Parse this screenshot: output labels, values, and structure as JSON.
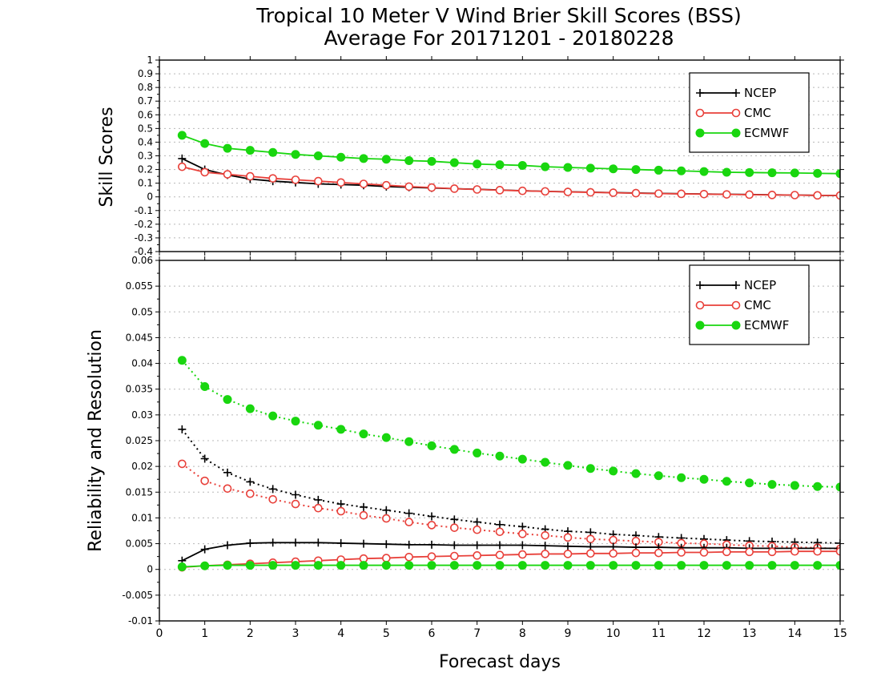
{
  "title_line1": "Tropical 10 Meter V Wind Brier Skill Scores (BSS)",
  "title_line2": "Average For 20171201 - 20180228",
  "xlabel": "Forecast days",
  "colors": {
    "NCEP": "#000000",
    "CMC": "#e8403a",
    "ECMWF": "#19d60f"
  },
  "chart_data": [
    {
      "type": "line",
      "ylabel": "Skill Scores",
      "xlim": [
        0,
        15
      ],
      "ylim": [
        -0.4,
        1
      ],
      "yticks": [
        "-0.4",
        "-0.3",
        "-0.2",
        "-0.1",
        "0",
        "0.1",
        "0.2",
        "0.3",
        "0.4",
        "0.5",
        "0.6",
        "0.7",
        "0.8",
        "0.9",
        "1"
      ],
      "grid": true,
      "legend_position": "top-right",
      "x": [
        0.5,
        1,
        1.5,
        2,
        2.5,
        3,
        3.5,
        4,
        4.5,
        5,
        5.5,
        6,
        6.5,
        7,
        7.5,
        8,
        8.5,
        9,
        9.5,
        10,
        10.5,
        11,
        11.5,
        12,
        12.5,
        13,
        13.5,
        14,
        14.5,
        15
      ],
      "series": [
        {
          "name": "NCEP",
          "marker": "plus",
          "style": "solid",
          "values": [
            0.28,
            0.2,
            0.16,
            0.13,
            0.115,
            0.105,
            0.095,
            0.09,
            0.085,
            0.075,
            0.07,
            0.065,
            0.06,
            0.055,
            0.05,
            0.045,
            0.04,
            0.037,
            0.034,
            0.031,
            0.028,
            0.025,
            0.023,
            0.021,
            0.019,
            0.017,
            0.015,
            0.013,
            0.011,
            0.01
          ]
        },
        {
          "name": "CMC",
          "marker": "open-circle",
          "style": "solid",
          "values": [
            0.22,
            0.18,
            0.165,
            0.15,
            0.135,
            0.125,
            0.115,
            0.105,
            0.095,
            0.085,
            0.075,
            0.068,
            0.06,
            0.054,
            0.049,
            0.044,
            0.04,
            0.036,
            0.033,
            0.03,
            0.027,
            0.024,
            0.022,
            0.02,
            0.018,
            0.016,
            0.014,
            0.013,
            0.011,
            0.01
          ]
        },
        {
          "name": "ECMWF",
          "marker": "filled-circle",
          "style": "solid",
          "values": [
            0.45,
            0.39,
            0.355,
            0.34,
            0.325,
            0.31,
            0.3,
            0.29,
            0.28,
            0.275,
            0.265,
            0.26,
            0.25,
            0.24,
            0.235,
            0.23,
            0.22,
            0.215,
            0.21,
            0.205,
            0.2,
            0.195,
            0.19,
            0.185,
            0.18,
            0.178,
            0.176,
            0.175,
            0.172,
            0.17
          ]
        }
      ]
    },
    {
      "type": "line",
      "ylabel": "Reliability and Resolution",
      "xlim": [
        0,
        15
      ],
      "ylim": [
        -0.01,
        0.06
      ],
      "yticks": [
        "-0.01",
        "-0.005",
        "0",
        "0.005",
        "0.01",
        "0.015",
        "0.02",
        "0.025",
        "0.03",
        "0.035",
        "0.04",
        "0.045",
        "0.05",
        "0.055",
        "0.06"
      ],
      "grid": true,
      "legend_position": "top-right",
      "x": [
        0.5,
        1,
        1.5,
        2,
        2.5,
        3,
        3.5,
        4,
        4.5,
        5,
        5.5,
        6,
        6.5,
        7,
        7.5,
        8,
        8.5,
        9,
        9.5,
        10,
        10.5,
        11,
        11.5,
        12,
        12.5,
        13,
        13.5,
        14,
        14.5,
        15
      ],
      "series": [
        {
          "name": "NCEP",
          "component": "resolution",
          "marker": "plus",
          "style": "dotted",
          "values": [
            0.0272,
            0.0215,
            0.0188,
            0.017,
            0.0156,
            0.0145,
            0.0135,
            0.0127,
            0.0121,
            0.0115,
            0.0109,
            0.0103,
            0.0097,
            0.0092,
            0.0087,
            0.0083,
            0.0078,
            0.0074,
            0.0072,
            0.0068,
            0.0066,
            0.0063,
            0.0061,
            0.0059,
            0.0057,
            0.0055,
            0.0054,
            0.0053,
            0.0052,
            0.0051
          ]
        },
        {
          "name": "CMC",
          "component": "resolution",
          "marker": "open-circle",
          "style": "dotted",
          "values": [
            0.0205,
            0.0172,
            0.0157,
            0.0147,
            0.0136,
            0.0127,
            0.0119,
            0.0113,
            0.0105,
            0.0099,
            0.0092,
            0.0086,
            0.0081,
            0.0077,
            0.0073,
            0.0069,
            0.0066,
            0.0062,
            0.0059,
            0.0057,
            0.0055,
            0.0053,
            0.0051,
            0.005,
            0.0048,
            0.0046,
            0.0045,
            0.0043,
            0.0042,
            0.004
          ]
        },
        {
          "name": "ECMWF",
          "component": "resolution",
          "marker": "filled-circle",
          "style": "dotted",
          "values": [
            0.0406,
            0.0355,
            0.033,
            0.0312,
            0.0298,
            0.0288,
            0.028,
            0.0272,
            0.0263,
            0.0256,
            0.0248,
            0.024,
            0.0233,
            0.0226,
            0.022,
            0.0214,
            0.0208,
            0.0202,
            0.0196,
            0.0191,
            0.0186,
            0.0182,
            0.0178,
            0.0175,
            0.0171,
            0.0168,
            0.0165,
            0.0163,
            0.0161,
            0.016
          ]
        },
        {
          "name": "NCEP",
          "component": "reliability",
          "marker": "plus",
          "style": "solid",
          "values": [
            0.0017,
            0.0039,
            0.0047,
            0.0051,
            0.0052,
            0.0052,
            0.0052,
            0.0051,
            0.005,
            0.0049,
            0.0048,
            0.0048,
            0.0047,
            0.0047,
            0.0047,
            0.0047,
            0.0046,
            0.0045,
            0.0044,
            0.0044,
            0.0043,
            0.0043,
            0.0042,
            0.0042,
            0.0042,
            0.0041,
            0.0041,
            0.0041,
            0.0041,
            0.0041
          ]
        },
        {
          "name": "CMC",
          "component": "reliability",
          "marker": "open-circle",
          "style": "solid",
          "values": [
            0.0004,
            0.0007,
            0.0009,
            0.0011,
            0.0013,
            0.0015,
            0.0017,
            0.0019,
            0.0021,
            0.0022,
            0.0024,
            0.0025,
            0.0026,
            0.0027,
            0.0028,
            0.0029,
            0.003,
            0.003,
            0.0031,
            0.0031,
            0.0032,
            0.0032,
            0.0033,
            0.0033,
            0.0034,
            0.0034,
            0.0034,
            0.0035,
            0.0035,
            0.0035
          ]
        },
        {
          "name": "ECMWF",
          "component": "reliability",
          "marker": "filled-circle",
          "style": "solid",
          "values": [
            0.0005,
            0.0007,
            0.0008,
            0.0008,
            0.0008,
            0.0008,
            0.0008,
            0.0008,
            0.0008,
            0.0008,
            0.0008,
            0.0008,
            0.0008,
            0.0008,
            0.0008,
            0.0008,
            0.0008,
            0.0008,
            0.0008,
            0.0008,
            0.0008,
            0.0008,
            0.0008,
            0.0008,
            0.0008,
            0.0008,
            0.0008,
            0.0008,
            0.0008,
            0.0008
          ]
        }
      ]
    }
  ],
  "xticks": [
    "0",
    "1",
    "2",
    "3",
    "4",
    "5",
    "6",
    "7",
    "8",
    "9",
    "10",
    "11",
    "12",
    "13",
    "14",
    "15"
  ],
  "legend_entries": [
    "NCEP",
    "CMC",
    "ECMWF"
  ]
}
